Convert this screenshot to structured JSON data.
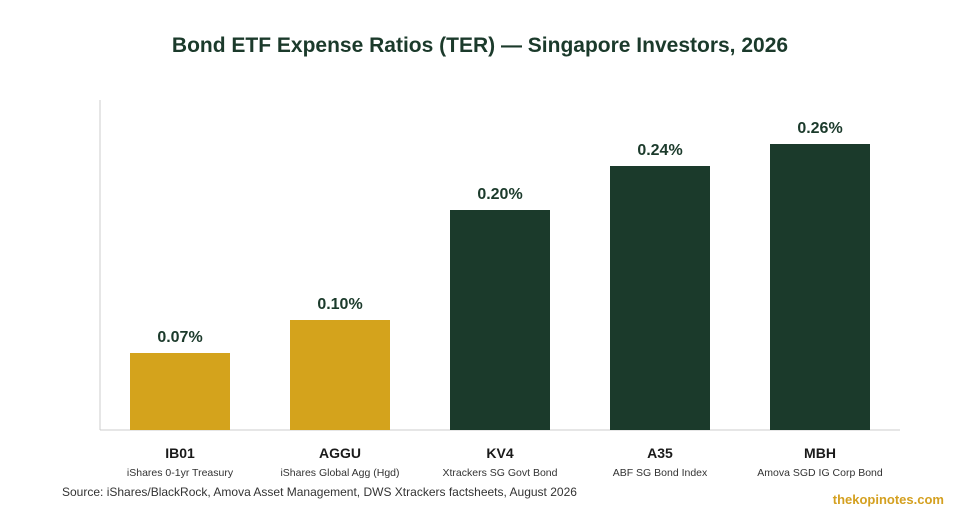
{
  "chart_data": {
    "type": "bar",
    "title": "Bond ETF Expense Ratios (TER) — Singapore Investors, 2026",
    "categories": [
      "IB01",
      "AGGU",
      "KV4",
      "A35",
      "MBH"
    ],
    "subtitles": [
      "iShares 0-1yr Treasury",
      "iShares Global Agg (Hgd)",
      "Xtrackers SG Govt Bond",
      "ABF SG Bond Index",
      "Amova SGD IG Corp Bond"
    ],
    "values": [
      0.07,
      0.1,
      0.2,
      0.24,
      0.26
    ],
    "value_labels": [
      "0.07%",
      "0.10%",
      "0.20%",
      "0.24%",
      "0.26%"
    ],
    "bar_colors": [
      "#d4a31c",
      "#d4a31c",
      "#1b3a2b",
      "#1b3a2b",
      "#1b3a2b"
    ],
    "ylim": [
      0,
      0.3
    ],
    "grid": false,
    "xlabel": "",
    "ylabel": ""
  },
  "source": "Source: iShares/BlackRock, Amova Asset Management, DWS Xtrackers factsheets, August 2026",
  "watermark": "thekopinotes.com",
  "colors": {
    "title": "#1b3a2b",
    "axis": "#cccccc",
    "label": "#1a1a1a",
    "watermark": "#d4a020"
  }
}
